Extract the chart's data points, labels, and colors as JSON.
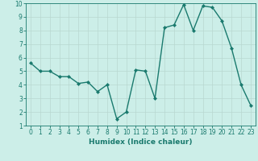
{
  "x": [
    0,
    1,
    2,
    3,
    4,
    5,
    6,
    7,
    8,
    9,
    10,
    11,
    12,
    13,
    14,
    15,
    16,
    17,
    18,
    19,
    20,
    21,
    22,
    23
  ],
  "y": [
    5.6,
    5.0,
    5.0,
    4.6,
    4.6,
    4.1,
    4.2,
    3.5,
    4.0,
    1.5,
    2.0,
    5.1,
    5.0,
    3.0,
    8.2,
    8.4,
    9.9,
    8.0,
    9.8,
    9.7,
    8.7,
    6.7,
    4.0,
    2.5
  ],
  "line_color": "#1a7a6e",
  "marker": "D",
  "marker_size": 2.0,
  "linewidth": 1.0,
  "xlabel": "Humidex (Indice chaleur)",
  "xlim": [
    -0.5,
    23.5
  ],
  "ylim": [
    1,
    10
  ],
  "yticks": [
    1,
    2,
    3,
    4,
    5,
    6,
    7,
    8,
    9,
    10
  ],
  "xticks": [
    0,
    1,
    2,
    3,
    4,
    5,
    6,
    7,
    8,
    9,
    10,
    11,
    12,
    13,
    14,
    15,
    16,
    17,
    18,
    19,
    20,
    21,
    22,
    23
  ],
  "bg_color": "#cceee8",
  "grid_color": "#b8d8d0",
  "tick_color": "#1a7a6e",
  "xlabel_fontsize": 6.5,
  "tick_fontsize": 5.5
}
